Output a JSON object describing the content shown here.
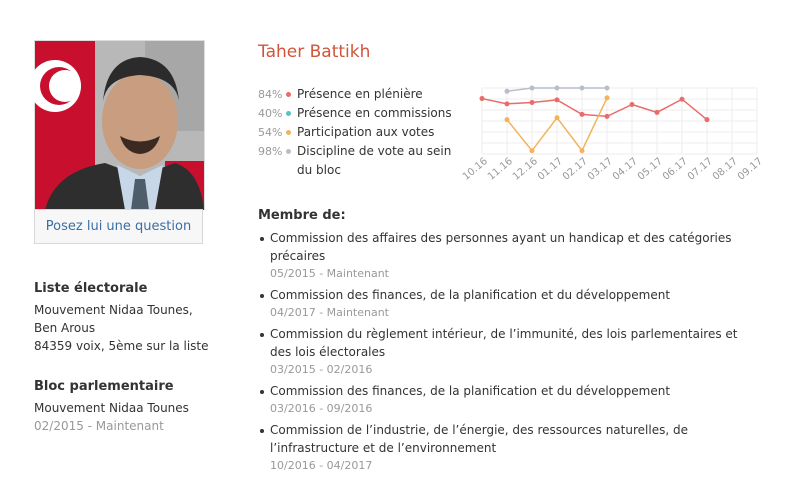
{
  "profile": {
    "name": "Taher Battikh",
    "ask_button": "Posez lui une question"
  },
  "stats": [
    {
      "pct": "84%",
      "label": "Présence en plénière",
      "color": "#e96b6b"
    },
    {
      "pct": "40%",
      "label": "Présence en commissions",
      "color": "#5bc0c0"
    },
    {
      "pct": "54%",
      "label": "Participation aux votes",
      "color": "#f2b35c"
    },
    {
      "pct": "98%",
      "label": "Discipline de vote au sein du bloc",
      "color": "#b9bec8"
    }
  ],
  "chart_data": {
    "type": "line",
    "categories": [
      "10.16",
      "11.16",
      "12.16",
      "01.17",
      "02.17",
      "03.17",
      "04.17",
      "05.17",
      "06.17",
      "07.17",
      "08.17",
      "09.17"
    ],
    "series": [
      {
        "color": "#e96b6b",
        "values": [
          84,
          76,
          78,
          82,
          60,
          57,
          75,
          63,
          83,
          52,
          null,
          null
        ]
      },
      {
        "color": "#f2b35c",
        "values": [
          null,
          52,
          5,
          55,
          5,
          85,
          null,
          null,
          null,
          null,
          null,
          null
        ]
      },
      {
        "color": "#b9bec8",
        "values": [
          null,
          95,
          100,
          100,
          100,
          100,
          null,
          null,
          null,
          null,
          null,
          null
        ]
      }
    ],
    "ylim": [
      0,
      100
    ],
    "grid": true
  },
  "electoral": {
    "title": "Liste électorale",
    "list": "Mouvement Nidaa Tounes, Ben Arous",
    "votes": "84359 voix, 5ème sur la liste"
  },
  "bloc": {
    "title": "Bloc parlementaire",
    "name": "Mouvement Nidaa Tounes",
    "period": "02/2015 - Maintenant"
  },
  "membership": {
    "title": "Membre de:",
    "items": [
      {
        "name": "Commission des affaires des personnes ayant un handicap et des catégories précaires",
        "period": "05/2015 - Maintenant"
      },
      {
        "name": "Commission des finances, de la planification et du développement",
        "period": "04/2017 - Maintenant"
      },
      {
        "name": "Commission du règlement intérieur, de l’immunité, des lois parlementaires et des lois électorales",
        "period": "03/2015 - 02/2016"
      },
      {
        "name": "Commission des finances, de la planification et du développement",
        "period": "03/2016 - 09/2016"
      },
      {
        "name": "Commission de l’industrie, de l’énergie, des ressources naturelles, de l’infrastructure et de l’environnement",
        "period": "10/2016 - 04/2017"
      }
    ]
  }
}
